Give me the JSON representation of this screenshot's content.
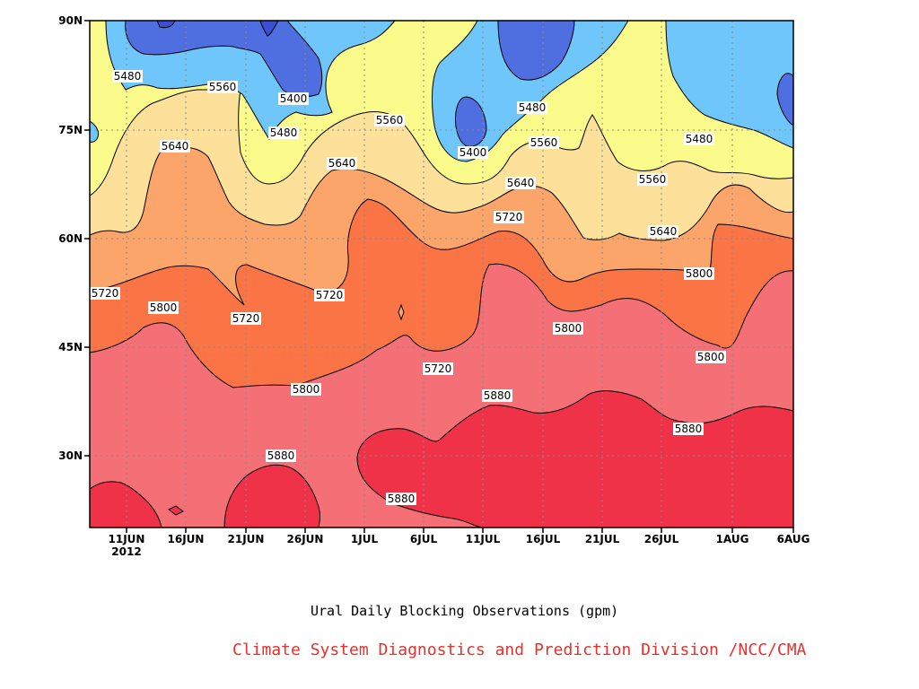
{
  "chart_data": {
    "type": "filled-contour",
    "title": "Ural Daily Blocking Observations (gpm)",
    "credit": "Climate System Diagnostics and Prediction Division /NCC/CMA",
    "x_axis": {
      "start": "2012-06-07",
      "end": "2012-08-06",
      "ticks": [
        "11JUN",
        "16JUN",
        "21JUN",
        "26JUN",
        "1JUL",
        "6JUL",
        "11JUL",
        "16JUL",
        "21JUL",
        "26JUL",
        "1AUG",
        "6AUG"
      ],
      "year_label": "2012"
    },
    "y_axis": {
      "range_deg_n": [
        20,
        90
      ],
      "ticks": [
        "30N",
        "45N",
        "60N",
        "75N",
        "90N"
      ]
    },
    "levels_gpm": [
      5400,
      5480,
      5560,
      5640,
      5720,
      5800,
      5880
    ],
    "fill_colors": [
      "#4f6ee0",
      "#6aa0f4",
      "#6ec6fa",
      "#fbfb8c",
      "#fde19b",
      "#fca56a",
      "#fa7446",
      "#f47076",
      "#ef3248"
    ],
    "contour_labels": [
      "5480",
      "5560",
      "5400",
      "5480",
      "5560",
      "5640",
      "5640",
      "5480",
      "5400",
      "5560",
      "5640",
      "5480",
      "5560",
      "5720",
      "5640",
      "5720",
      "5800",
      "5720",
      "5720",
      "5800",
      "5800",
      "5720",
      "5800",
      "5880",
      "5880",
      "5880",
      "5880",
      "5800"
    ],
    "grid": "dotted"
  }
}
